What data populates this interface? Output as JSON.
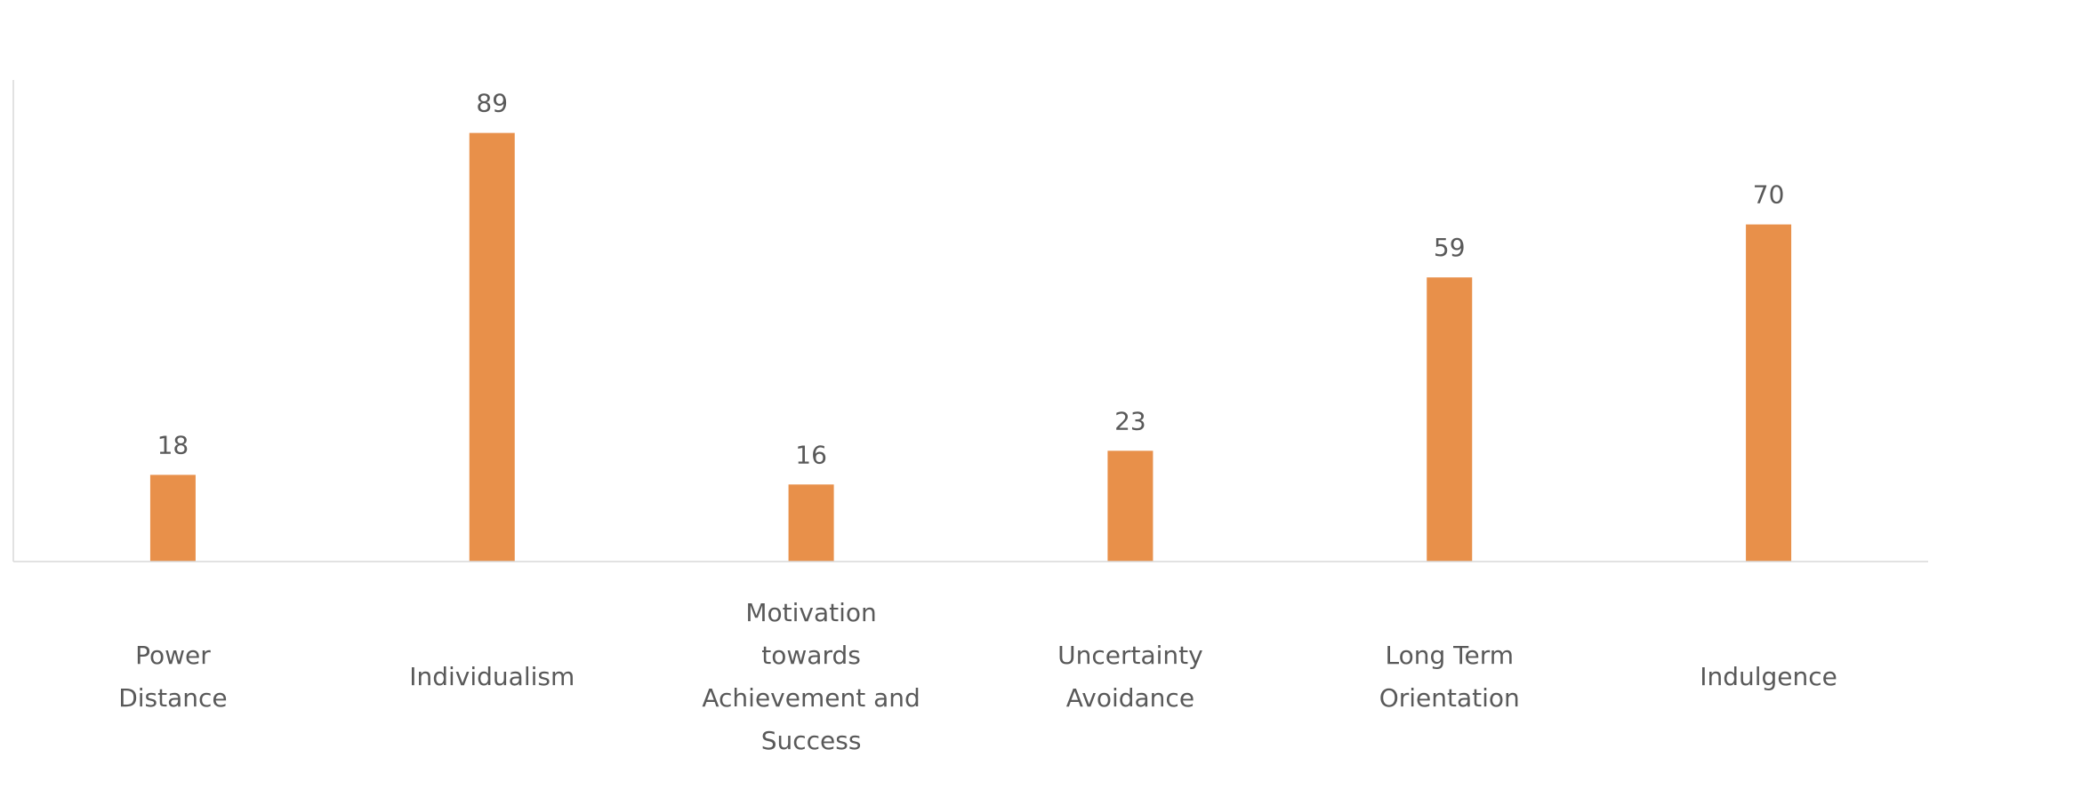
{
  "chart_data": {
    "type": "bar",
    "categories": [
      "Power\nDistance",
      "Individualism",
      "Motivation\ntowards\nAchievement and\nSuccess",
      "Uncertainty\nAvoidance",
      "Long Term\nOrientation",
      "Indulgence"
    ],
    "values": [
      18,
      89,
      16,
      23,
      59,
      70
    ],
    "color": "#e8904a",
    "ylim": [
      0,
      100
    ]
  }
}
